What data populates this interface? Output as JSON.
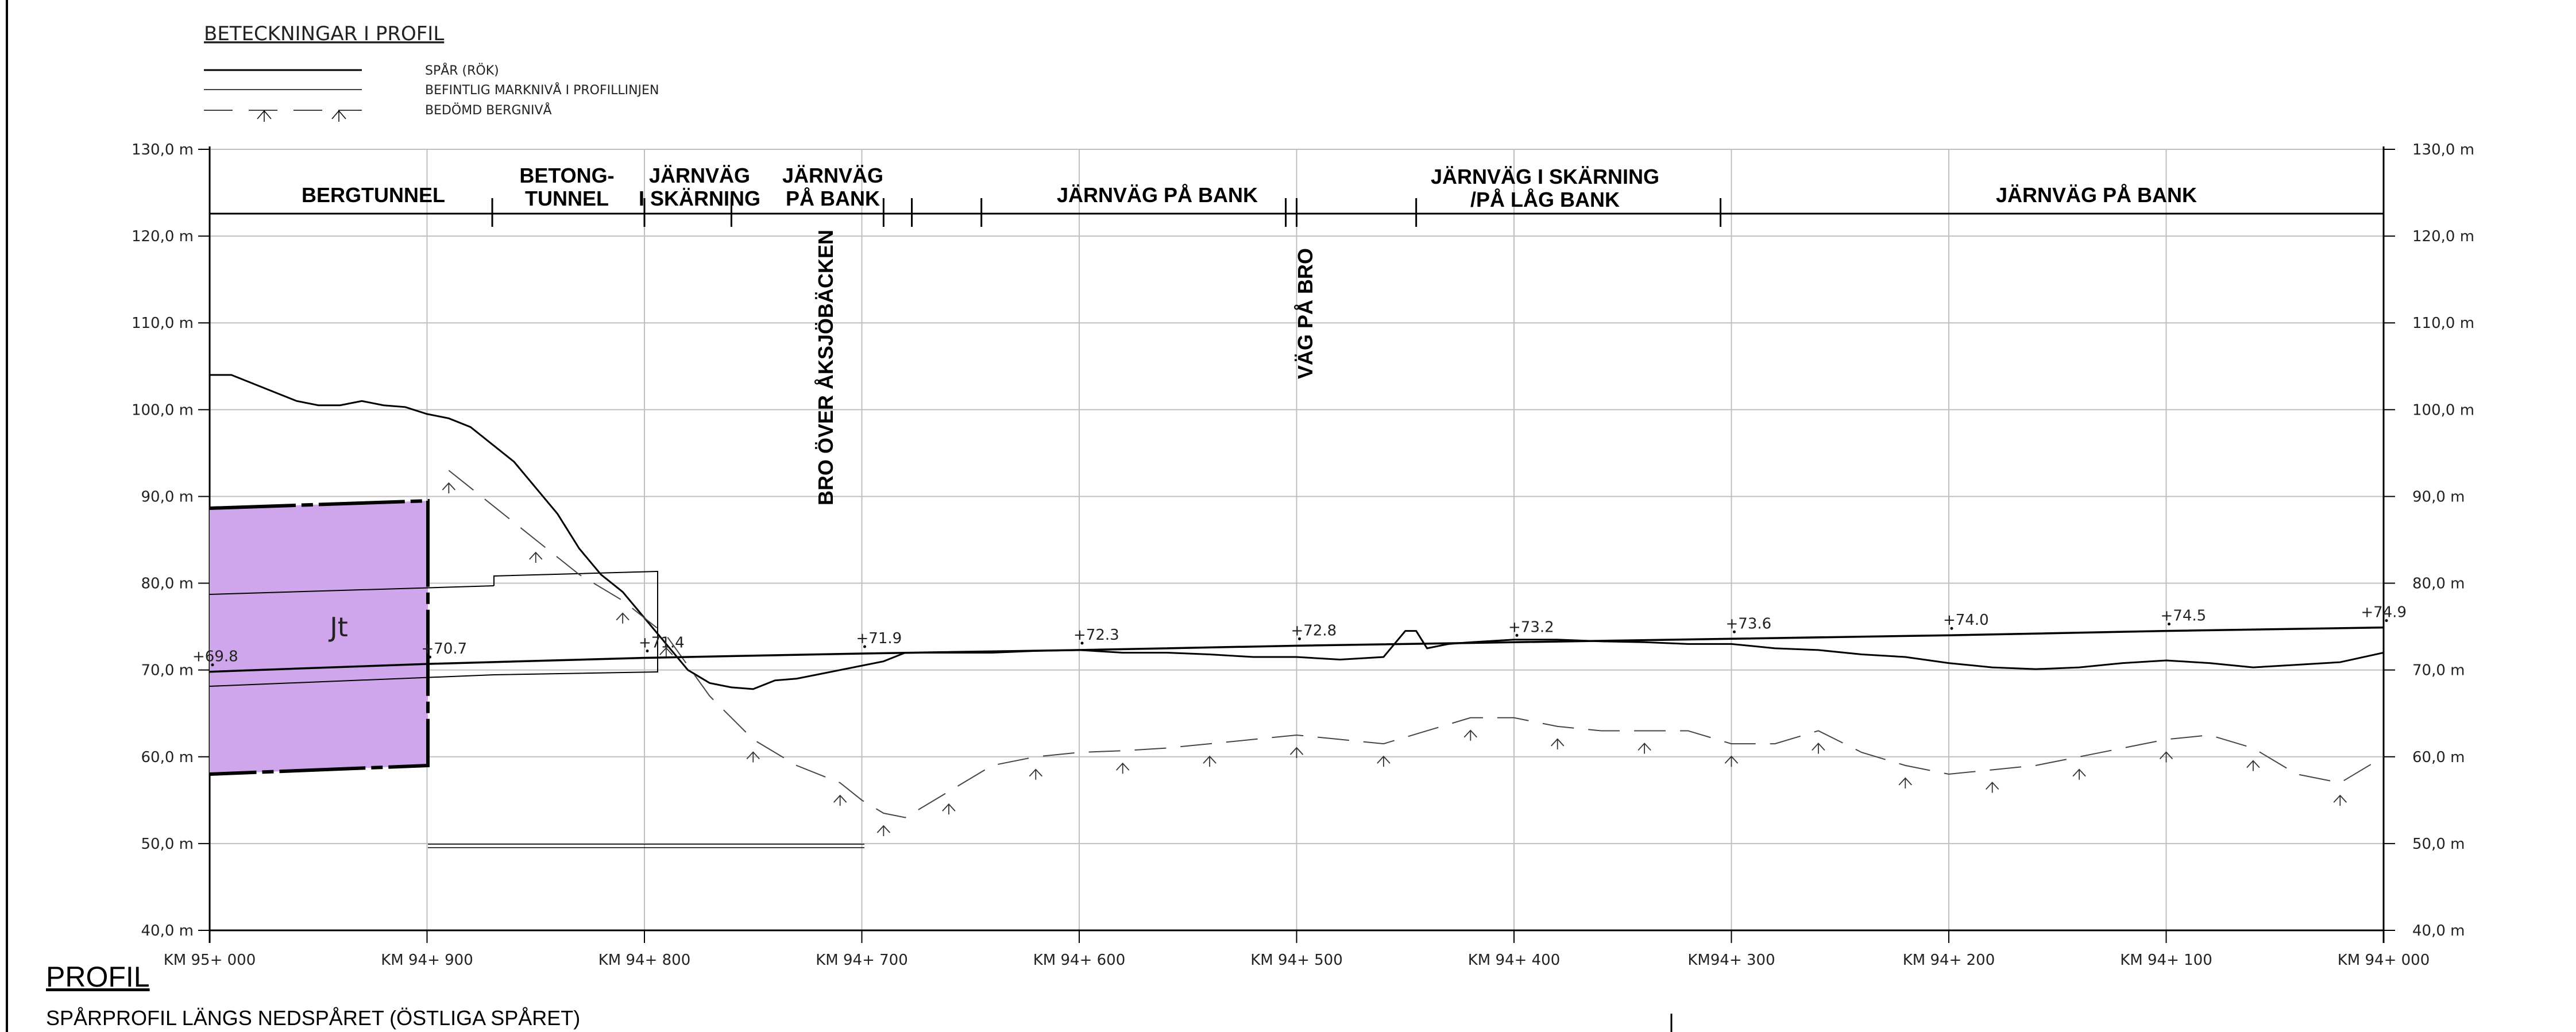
{
  "legend": {
    "title": "BETECKNINGAR I PROFIL",
    "items": [
      {
        "label": "SPÅR (RÖK)",
        "style": "solid"
      },
      {
        "label": "BEFINTLIG MARKNIVÅ I PROFILLINJEN",
        "style": "solid-thin"
      },
      {
        "label": "BEDÖMD BERGNIVÅ",
        "style": "dashed"
      }
    ]
  },
  "sections": [
    {
      "lines": [
        "BERGTUNNEL"
      ]
    },
    {
      "lines": [
        "BETONG-",
        "TUNNEL"
      ]
    },
    {
      "lines": [
        "JÄRNVÄG",
        "I SKÄRNING"
      ]
    },
    {
      "lines": [
        "JÄRNVÄG",
        "PÅ BANK"
      ]
    },
    {
      "lines": [
        "JÄRNVÄG PÅ BANK"
      ]
    },
    {
      "lines": [
        "JÄRNVÄG I SKÄRNING",
        "/PÅ LÅG BANK"
      ]
    },
    {
      "lines": [
        "JÄRNVÄG PÅ BANK"
      ]
    }
  ],
  "structures": [
    {
      "label": "BRO ÖVER ÅKSJÖBÄCKEN"
    },
    {
      "label": "VÄG PÅ BRO"
    }
  ],
  "elevation_labels": [
    "130,0 m",
    "120,0 m",
    "110,0 m",
    "100,0 m",
    "90,0 m",
    "80,0 m",
    "70,0 m",
    "60,0 m",
    "50,0 m",
    "40,0 m"
  ],
  "elevation_values": [
    130,
    120,
    110,
    100,
    90,
    80,
    70,
    60,
    50,
    40
  ],
  "chainage_labels": [
    "KM 95+ 000",
    "KM 94+ 900",
    "KM 94+ 800",
    "KM 94+ 700",
    "KM 94+ 600",
    "KM 94+ 500",
    "KM 94+ 400",
    "KM94+ 300",
    "KM 94+ 200",
    "KM 94+ 100",
    "KM 94+ 000"
  ],
  "track_levels": [
    {
      "chain": 1000,
      "text": "+69.8"
    },
    {
      "chain": 900,
      "text": "+70.7"
    },
    {
      "chain": 800,
      "text": "+71.4"
    },
    {
      "chain": 700,
      "text": "+71.9"
    },
    {
      "chain": 600,
      "text": "+72.3"
    },
    {
      "chain": 500,
      "text": "+72.8"
    },
    {
      "chain": 400,
      "text": "+73.2"
    },
    {
      "chain": 300,
      "text": "+73.6"
    },
    {
      "chain": 200,
      "text": "+74.0"
    },
    {
      "chain": 100,
      "text": "+74.5"
    },
    {
      "chain": 0,
      "text": "+74.9"
    }
  ],
  "rock_zone_label": "Jt",
  "colors": {
    "rock_fill": "#cfa6ec",
    "rock_edge": "#000000",
    "grid": "#bfbfbf",
    "line": "#000000"
  },
  "footer": {
    "title": "PROFIL",
    "subtitle": "SPÅRPROFIL LÄNGS NEDSPÅRET (ÖSTLIGA SPÅRET)"
  },
  "chart_data": {
    "type": "line",
    "xlabel": "",
    "ylabel": "",
    "x_unit": "chainage (m before KM 94+000)",
    "xlim": [
      1000,
      0
    ],
    "ylim": [
      40,
      130
    ],
    "series": [
      {
        "name": "SPÅR (RÖK)",
        "x": [
          1000,
          900,
          800,
          700,
          600,
          500,
          400,
          300,
          200,
          100,
          0
        ],
        "y": [
          69.8,
          70.7,
          71.4,
          71.9,
          72.3,
          72.8,
          73.2,
          73.6,
          74.0,
          74.5,
          74.9
        ]
      },
      {
        "name": "BEFINTLIG MARKNIVÅ I PROFILLINJEN",
        "x": [
          1000,
          990,
          980,
          970,
          960,
          950,
          940,
          930,
          920,
          910,
          900,
          890,
          880,
          870,
          860,
          850,
          840,
          830,
          820,
          810,
          800,
          790,
          780,
          770,
          760,
          750,
          740,
          730,
          720,
          710,
          700,
          690,
          680,
          660,
          640,
          620,
          600,
          580,
          560,
          540,
          520,
          500,
          480,
          460,
          450,
          445,
          440,
          430,
          420,
          400,
          380,
          360,
          340,
          320,
          300,
          280,
          260,
          240,
          220,
          200,
          180,
          160,
          140,
          120,
          100,
          80,
          60,
          40,
          20,
          0
        ],
        "y": [
          104,
          104,
          103,
          102,
          101,
          100.5,
          100.5,
          101,
          100.5,
          100.3,
          99.5,
          99,
          98,
          96,
          94,
          91,
          88,
          84,
          81,
          79,
          76,
          73,
          70,
          68.5,
          68,
          67.8,
          68.8,
          69,
          69.5,
          70,
          70.5,
          71,
          72,
          72,
          72,
          72.2,
          72.3,
          72,
          72,
          71.8,
          71.5,
          71.5,
          71.2,
          71.5,
          74.5,
          74.5,
          72.5,
          73,
          73.2,
          73.5,
          73.5,
          73.3,
          73.2,
          73,
          73,
          72.5,
          72.3,
          71.8,
          71.5,
          70.8,
          70.3,
          70.1,
          70.3,
          70.8,
          71.1,
          70.8,
          70.3,
          70.6,
          70.9,
          72
        ]
      },
      {
        "name": "BEDÖMD BERGNIVÅ",
        "x": [
          890,
          870,
          850,
          830,
          810,
          800,
          790,
          770,
          750,
          730,
          710,
          700,
          690,
          680,
          660,
          640,
          620,
          600,
          580,
          560,
          540,
          520,
          500,
          480,
          460,
          440,
          420,
          400,
          380,
          360,
          340,
          320,
          300,
          280,
          260,
          240,
          220,
          200,
          180,
          160,
          140,
          120,
          100,
          80,
          60,
          40,
          20,
          0
        ],
        "y": [
          93,
          89,
          85,
          81,
          78,
          76,
          74,
          67,
          62,
          59,
          57,
          55,
          53.5,
          53,
          56,
          59,
          60,
          60.5,
          60.7,
          61,
          61.5,
          62,
          62.5,
          62,
          61.5,
          63,
          64.5,
          64.5,
          63.5,
          63,
          63,
          63,
          61.5,
          61.5,
          63,
          60.5,
          59,
          58,
          58.5,
          59,
          60,
          61,
          62,
          62.5,
          61,
          58,
          57,
          60
        ]
      }
    ]
  }
}
